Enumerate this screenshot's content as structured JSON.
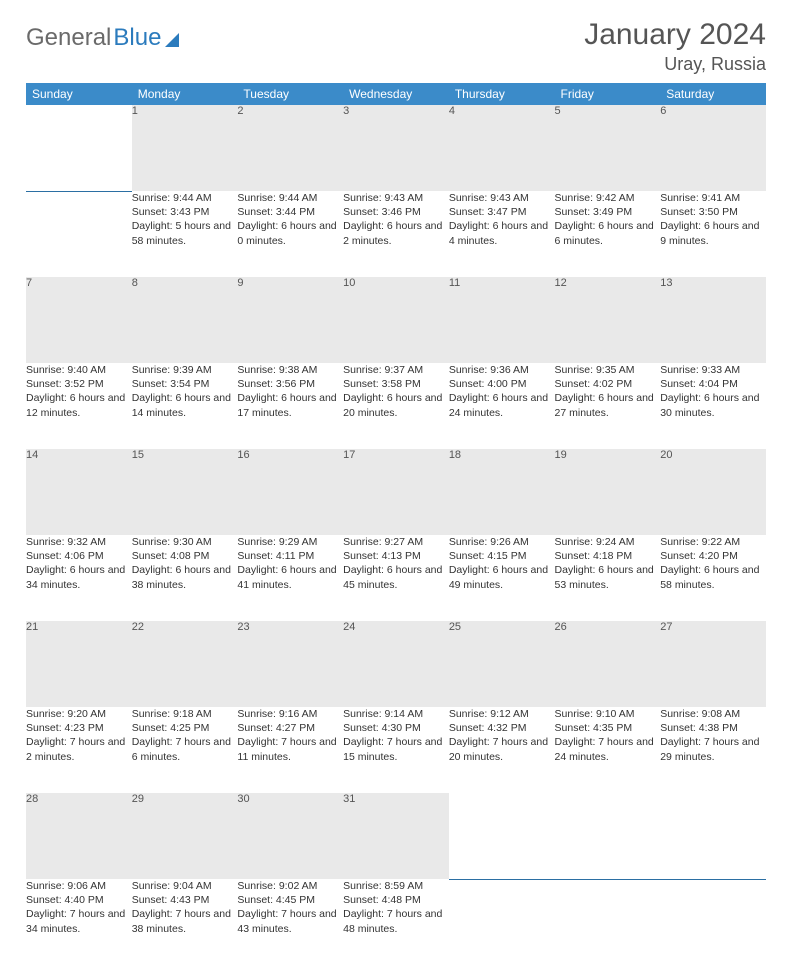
{
  "brand": {
    "part1": "General",
    "part2": "Blue"
  },
  "title": "January 2024",
  "location": "Uray, Russia",
  "colors": {
    "header_bg": "#3b8bc9",
    "header_text": "#ffffff",
    "daybar_bg": "#e9e9e9",
    "daybar_border": "#2b6fa3",
    "text": "#333333",
    "title_text": "#555555"
  },
  "weekdays": [
    "Sunday",
    "Monday",
    "Tuesday",
    "Wednesday",
    "Thursday",
    "Friday",
    "Saturday"
  ],
  "weeks": [
    {
      "nums": [
        "",
        "1",
        "2",
        "3",
        "4",
        "5",
        "6"
      ],
      "cells": [
        null,
        {
          "sunrise": "Sunrise: 9:44 AM",
          "sunset": "Sunset: 3:43 PM",
          "day": "Daylight: 5 hours and 58 minutes."
        },
        {
          "sunrise": "Sunrise: 9:44 AM",
          "sunset": "Sunset: 3:44 PM",
          "day": "Daylight: 6 hours and 0 minutes."
        },
        {
          "sunrise": "Sunrise: 9:43 AM",
          "sunset": "Sunset: 3:46 PM",
          "day": "Daylight: 6 hours and 2 minutes."
        },
        {
          "sunrise": "Sunrise: 9:43 AM",
          "sunset": "Sunset: 3:47 PM",
          "day": "Daylight: 6 hours and 4 minutes."
        },
        {
          "sunrise": "Sunrise: 9:42 AM",
          "sunset": "Sunset: 3:49 PM",
          "day": "Daylight: 6 hours and 6 minutes."
        },
        {
          "sunrise": "Sunrise: 9:41 AM",
          "sunset": "Sunset: 3:50 PM",
          "day": "Daylight: 6 hours and 9 minutes."
        }
      ]
    },
    {
      "nums": [
        "7",
        "8",
        "9",
        "10",
        "11",
        "12",
        "13"
      ],
      "cells": [
        {
          "sunrise": "Sunrise: 9:40 AM",
          "sunset": "Sunset: 3:52 PM",
          "day": "Daylight: 6 hours and 12 minutes."
        },
        {
          "sunrise": "Sunrise: 9:39 AM",
          "sunset": "Sunset: 3:54 PM",
          "day": "Daylight: 6 hours and 14 minutes."
        },
        {
          "sunrise": "Sunrise: 9:38 AM",
          "sunset": "Sunset: 3:56 PM",
          "day": "Daylight: 6 hours and 17 minutes."
        },
        {
          "sunrise": "Sunrise: 9:37 AM",
          "sunset": "Sunset: 3:58 PM",
          "day": "Daylight: 6 hours and 20 minutes."
        },
        {
          "sunrise": "Sunrise: 9:36 AM",
          "sunset": "Sunset: 4:00 PM",
          "day": "Daylight: 6 hours and 24 minutes."
        },
        {
          "sunrise": "Sunrise: 9:35 AM",
          "sunset": "Sunset: 4:02 PM",
          "day": "Daylight: 6 hours and 27 minutes."
        },
        {
          "sunrise": "Sunrise: 9:33 AM",
          "sunset": "Sunset: 4:04 PM",
          "day": "Daylight: 6 hours and 30 minutes."
        }
      ]
    },
    {
      "nums": [
        "14",
        "15",
        "16",
        "17",
        "18",
        "19",
        "20"
      ],
      "cells": [
        {
          "sunrise": "Sunrise: 9:32 AM",
          "sunset": "Sunset: 4:06 PM",
          "day": "Daylight: 6 hours and 34 minutes."
        },
        {
          "sunrise": "Sunrise: 9:30 AM",
          "sunset": "Sunset: 4:08 PM",
          "day": "Daylight: 6 hours and 38 minutes."
        },
        {
          "sunrise": "Sunrise: 9:29 AM",
          "sunset": "Sunset: 4:11 PM",
          "day": "Daylight: 6 hours and 41 minutes."
        },
        {
          "sunrise": "Sunrise: 9:27 AM",
          "sunset": "Sunset: 4:13 PM",
          "day": "Daylight: 6 hours and 45 minutes."
        },
        {
          "sunrise": "Sunrise: 9:26 AM",
          "sunset": "Sunset: 4:15 PM",
          "day": "Daylight: 6 hours and 49 minutes."
        },
        {
          "sunrise": "Sunrise: 9:24 AM",
          "sunset": "Sunset: 4:18 PM",
          "day": "Daylight: 6 hours and 53 minutes."
        },
        {
          "sunrise": "Sunrise: 9:22 AM",
          "sunset": "Sunset: 4:20 PM",
          "day": "Daylight: 6 hours and 58 minutes."
        }
      ]
    },
    {
      "nums": [
        "21",
        "22",
        "23",
        "24",
        "25",
        "26",
        "27"
      ],
      "cells": [
        {
          "sunrise": "Sunrise: 9:20 AM",
          "sunset": "Sunset: 4:23 PM",
          "day": "Daylight: 7 hours and 2 minutes."
        },
        {
          "sunrise": "Sunrise: 9:18 AM",
          "sunset": "Sunset: 4:25 PM",
          "day": "Daylight: 7 hours and 6 minutes."
        },
        {
          "sunrise": "Sunrise: 9:16 AM",
          "sunset": "Sunset: 4:27 PM",
          "day": "Daylight: 7 hours and 11 minutes."
        },
        {
          "sunrise": "Sunrise: 9:14 AM",
          "sunset": "Sunset: 4:30 PM",
          "day": "Daylight: 7 hours and 15 minutes."
        },
        {
          "sunrise": "Sunrise: 9:12 AM",
          "sunset": "Sunset: 4:32 PM",
          "day": "Daylight: 7 hours and 20 minutes."
        },
        {
          "sunrise": "Sunrise: 9:10 AM",
          "sunset": "Sunset: 4:35 PM",
          "day": "Daylight: 7 hours and 24 minutes."
        },
        {
          "sunrise": "Sunrise: 9:08 AM",
          "sunset": "Sunset: 4:38 PM",
          "day": "Daylight: 7 hours and 29 minutes."
        }
      ]
    },
    {
      "nums": [
        "28",
        "29",
        "30",
        "31",
        "",
        "",
        ""
      ],
      "cells": [
        {
          "sunrise": "Sunrise: 9:06 AM",
          "sunset": "Sunset: 4:40 PM",
          "day": "Daylight: 7 hours and 34 minutes."
        },
        {
          "sunrise": "Sunrise: 9:04 AM",
          "sunset": "Sunset: 4:43 PM",
          "day": "Daylight: 7 hours and 38 minutes."
        },
        {
          "sunrise": "Sunrise: 9:02 AM",
          "sunset": "Sunset: 4:45 PM",
          "day": "Daylight: 7 hours and 43 minutes."
        },
        {
          "sunrise": "Sunrise: 8:59 AM",
          "sunset": "Sunset: 4:48 PM",
          "day": "Daylight: 7 hours and 48 minutes."
        },
        null,
        null,
        null
      ]
    }
  ]
}
